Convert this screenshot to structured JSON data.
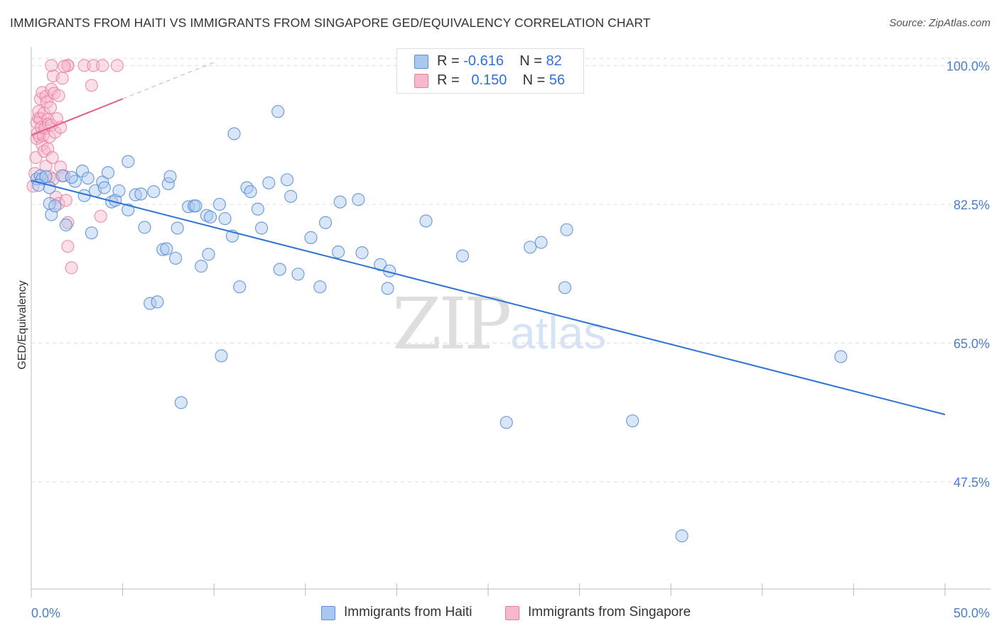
{
  "title": "IMMIGRANTS FROM HAITI VS IMMIGRANTS FROM SINGAPORE GED/EQUIVALENCY CORRELATION CHART",
  "source": "Source: ZipAtlas.com",
  "watermark": {
    "zip": "ZIP",
    "atlas": "atlas"
  },
  "colors": {
    "haiti_fill": "#a9c8ef",
    "haiti_stroke": "#5b8fd6",
    "haiti_line": "#2f72d6",
    "singapore_fill": "#f6b8cb",
    "singapore_stroke": "#e77ea0",
    "singapore_line": "#e0608a",
    "axis_text": "#4a7fc8",
    "grid": "#dddddd"
  },
  "legend": {
    "rows": [
      {
        "r_label": "R =",
        "r_value": "-0.616",
        "n_label": "N =",
        "n_value": "82"
      },
      {
        "r_label": "R =",
        "r_value": "0.150",
        "n_label": "N =",
        "n_value": "56"
      }
    ]
  },
  "bottom_legend": {
    "haiti": "Immigrants from Haiti",
    "singapore": "Immigrants from Singapore"
  },
  "chart_data": {
    "type": "scatter",
    "title": "IMMIGRANTS FROM HAITI VS IMMIGRANTS FROM SINGAPORE GED/EQUIVALENCY CORRELATION CHART",
    "xlabel": "",
    "ylabel": "GED/Equivalency",
    "xlim": [
      0,
      50
    ],
    "ylim": [
      34,
      102
    ],
    "x_tick_labels": [
      "0.0%",
      "50.0%"
    ],
    "y_ticks": [
      100.0,
      82.5,
      65.0,
      47.5
    ],
    "y_tick_labels": [
      "100.0%",
      "82.5%",
      "65.0%",
      "47.5%"
    ],
    "grid": "horizontal dashed",
    "legend_position": "top-center",
    "series": [
      {
        "name": "Immigrants from Haiti",
        "R": -0.616,
        "N": 82,
        "trend": {
          "x": [
            0.0,
            50.0
          ],
          "y": [
            85.5,
            56.0
          ]
        },
        "points": [
          [
            0.3,
            85.7
          ],
          [
            0.5,
            86.1
          ],
          [
            0.6,
            85.7
          ],
          [
            0.8,
            86.0
          ],
          [
            1.0,
            82.6
          ],
          [
            1.1,
            81.2
          ],
          [
            1.3,
            82.3
          ],
          [
            1.7,
            86.1
          ],
          [
            1.9,
            79.9
          ],
          [
            2.4,
            85.4
          ],
          [
            2.8,
            86.7
          ],
          [
            2.9,
            83.6
          ],
          [
            3.1,
            85.8
          ],
          [
            3.3,
            78.9
          ],
          [
            3.5,
            84.2
          ],
          [
            3.9,
            85.3
          ],
          [
            4.0,
            84.6
          ],
          [
            4.2,
            86.5
          ],
          [
            4.4,
            82.8
          ],
          [
            4.6,
            83.0
          ],
          [
            4.8,
            84.2
          ],
          [
            5.3,
            81.8
          ],
          [
            5.3,
            87.9
          ],
          [
            5.7,
            83.7
          ],
          [
            6.0,
            83.8
          ],
          [
            6.2,
            79.6
          ],
          [
            6.5,
            70.0
          ],
          [
            6.7,
            84.1
          ],
          [
            6.9,
            70.2
          ],
          [
            7.2,
            76.8
          ],
          [
            7.4,
            76.9
          ],
          [
            7.5,
            85.1
          ],
          [
            7.6,
            86.0
          ],
          [
            7.9,
            75.7
          ],
          [
            8.0,
            79.5
          ],
          [
            8.2,
            57.5
          ],
          [
            8.6,
            82.2
          ],
          [
            8.9,
            82.3
          ],
          [
            9.0,
            82.3
          ],
          [
            9.3,
            74.7
          ],
          [
            9.6,
            81.1
          ],
          [
            9.7,
            76.2
          ],
          [
            9.8,
            80.9
          ],
          [
            10.3,
            82.5
          ],
          [
            10.4,
            63.4
          ],
          [
            10.6,
            80.7
          ],
          [
            11.0,
            78.5
          ],
          [
            11.1,
            91.4
          ],
          [
            11.4,
            72.1
          ],
          [
            11.8,
            84.6
          ],
          [
            12.0,
            84.1
          ],
          [
            12.4,
            81.9
          ],
          [
            12.6,
            79.5
          ],
          [
            13.0,
            85.2
          ],
          [
            13.5,
            94.2
          ],
          [
            13.6,
            74.3
          ],
          [
            14.0,
            85.6
          ],
          [
            14.2,
            83.5
          ],
          [
            14.6,
            73.7
          ],
          [
            15.3,
            78.3
          ],
          [
            15.8,
            72.1
          ],
          [
            16.1,
            80.2
          ],
          [
            16.8,
            76.5
          ],
          [
            16.9,
            82.8
          ],
          [
            17.9,
            83.1
          ],
          [
            18.1,
            76.4
          ],
          [
            19.1,
            74.9
          ],
          [
            19.5,
            71.9
          ],
          [
            19.6,
            74.1
          ],
          [
            21.6,
            80.4
          ],
          [
            23.6,
            76.0
          ],
          [
            26.0,
            55.0
          ],
          [
            27.3,
            77.1
          ],
          [
            27.9,
            77.7
          ],
          [
            29.2,
            72.0
          ],
          [
            29.3,
            79.3
          ],
          [
            32.9,
            55.2
          ],
          [
            35.6,
            40.7
          ],
          [
            44.3,
            63.3
          ],
          [
            1.0,
            84.6
          ],
          [
            2.2,
            85.9
          ],
          [
            0.4,
            84.9
          ]
        ]
      },
      {
        "name": "Immigrants from Singapore",
        "R": 0.15,
        "N": 56,
        "trend": {
          "x": [
            0.0,
            5.0
          ],
          "y": [
            91.2,
            95.8
          ]
        },
        "trend_dashed": {
          "x": [
            5.0,
            10.0
          ],
          "y": [
            95.8,
            100.4
          ]
        },
        "points": [
          [
            0.1,
            84.8
          ],
          [
            0.2,
            86.4
          ],
          [
            0.25,
            88.4
          ],
          [
            0.3,
            90.8
          ],
          [
            0.3,
            92.8
          ],
          [
            0.35,
            91.5
          ],
          [
            0.4,
            93.4
          ],
          [
            0.4,
            94.2
          ],
          [
            0.45,
            91.0
          ],
          [
            0.5,
            95.8
          ],
          [
            0.5,
            93.3
          ],
          [
            0.55,
            92.2
          ],
          [
            0.6,
            96.6
          ],
          [
            0.6,
            90.0
          ],
          [
            0.65,
            91.2
          ],
          [
            0.7,
            94.0
          ],
          [
            0.7,
            89.2
          ],
          [
            0.75,
            92.1
          ],
          [
            0.8,
            96.1
          ],
          [
            0.8,
            87.3
          ],
          [
            0.85,
            95.4
          ],
          [
            0.9,
            93.2
          ],
          [
            0.9,
            89.5
          ],
          [
            0.95,
            92.6
          ],
          [
            1.0,
            86.0
          ],
          [
            1.0,
            91.0
          ],
          [
            1.05,
            94.7
          ],
          [
            1.1,
            97.0
          ],
          [
            1.1,
            92.5
          ],
          [
            1.15,
            88.4
          ],
          [
            1.2,
            85.7
          ],
          [
            1.2,
            98.7
          ],
          [
            1.25,
            96.5
          ],
          [
            1.3,
            91.6
          ],
          [
            1.35,
            83.4
          ],
          [
            1.4,
            93.3
          ],
          [
            1.5,
            96.2
          ],
          [
            1.5,
            82.6
          ],
          [
            1.6,
            87.2
          ],
          [
            1.6,
            92.2
          ],
          [
            1.7,
            98.4
          ],
          [
            1.8,
            86.1
          ],
          [
            1.9,
            83.0
          ],
          [
            2.0,
            80.2
          ],
          [
            2.0,
            77.2
          ],
          [
            2.2,
            74.5
          ],
          [
            2.0,
            100.0
          ],
          [
            1.1,
            100.0
          ],
          [
            2.0,
            100.0
          ],
          [
            2.9,
            100.0
          ],
          [
            3.4,
            100.0
          ],
          [
            3.9,
            100.0
          ],
          [
            4.7,
            100.0
          ],
          [
            3.3,
            97.5
          ],
          [
            3.8,
            81.0
          ],
          [
            1.8,
            99.9
          ]
        ]
      }
    ]
  }
}
